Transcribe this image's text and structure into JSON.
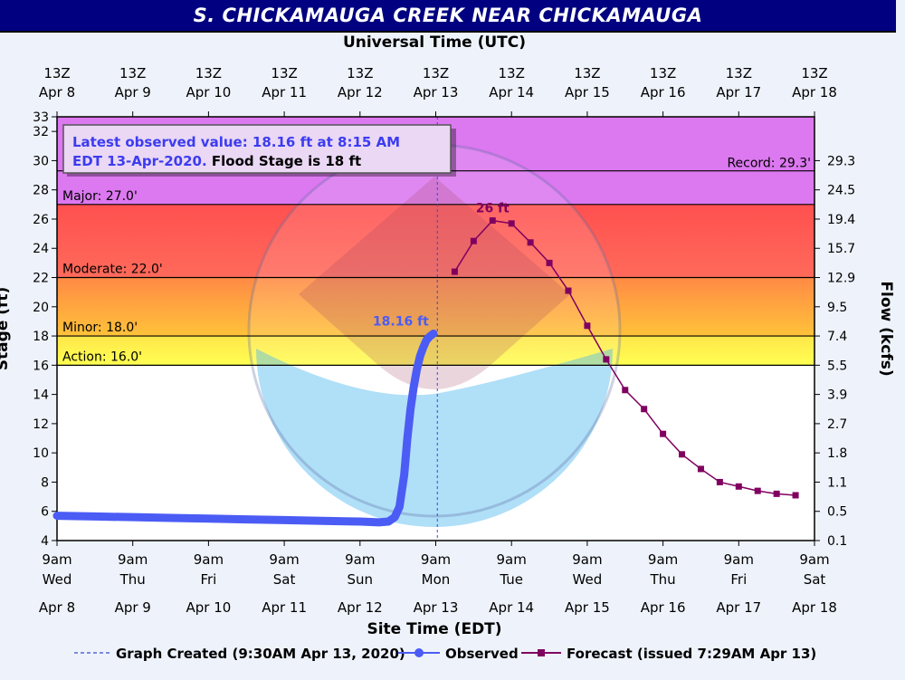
{
  "title": "S. CHICKAMAUGA CREEK NEAR CHICKAMAUGA",
  "top_axis_title": "Universal Time (UTC)",
  "bottom_axis_title": "Site Time (EDT)",
  "left_axis_title": "Stage (ft)",
  "right_axis_title": "Flow (kcfs)",
  "info_box": {
    "line1": "Latest observed value: 18.16 ft at 8:15 AM",
    "line2a": "EDT 13-Apr-2020.",
    "line2b": "Flood Stage is 18 ft"
  },
  "legend": {
    "graph_created": "Graph Created (9:30AM Apr 13, 2020)",
    "observed": "Observed",
    "forecast": "Forecast (issued 7:29AM Apr 13)"
  },
  "colors": {
    "record_band": "#dc78f0",
    "major_band": "#ff5a5a",
    "moderate_band": "#ffb23a",
    "minor_band": "#ffff52",
    "observed": "#4b5cf5",
    "forecast": "#800060",
    "info_text": "#3c3cf0",
    "banner": "#000080"
  },
  "chart_data": {
    "type": "line",
    "x_axis": {
      "start": "2020-04-08 09:00 EDT",
      "end": "2020-04-18 09:00 EDT",
      "bottom_ticks": [
        {
          "time": "9am",
          "day": "Wed",
          "date": "Apr 8"
        },
        {
          "time": "9am",
          "day": "Thu",
          "date": "Apr 9"
        },
        {
          "time": "9am",
          "day": "Fri",
          "date": "Apr 10"
        },
        {
          "time": "9am",
          "day": "Sat",
          "date": "Apr 11"
        },
        {
          "time": "9am",
          "day": "Sun",
          "date": "Apr 12"
        },
        {
          "time": "9am",
          "day": "Mon",
          "date": "Apr 13"
        },
        {
          "time": "9am",
          "day": "Tue",
          "date": "Apr 14"
        },
        {
          "time": "9am",
          "day": "Wed",
          "date": "Apr 15"
        },
        {
          "time": "9am",
          "day": "Thu",
          "date": "Apr 16"
        },
        {
          "time": "9am",
          "day": "Fri",
          "date": "Apr 17"
        },
        {
          "time": "9am",
          "day": "Sat",
          "date": "Apr 18"
        }
      ],
      "top_ticks": [
        {
          "time": "13Z",
          "date": "Apr 8"
        },
        {
          "time": "13Z",
          "date": "Apr 9"
        },
        {
          "time": "13Z",
          "date": "Apr 10"
        },
        {
          "time": "13Z",
          "date": "Apr 11"
        },
        {
          "time": "13Z",
          "date": "Apr 12"
        },
        {
          "time": "13Z",
          "date": "Apr 13"
        },
        {
          "time": "13Z",
          "date": "Apr 14"
        },
        {
          "time": "13Z",
          "date": "Apr 15"
        },
        {
          "time": "13Z",
          "date": "Apr 16"
        },
        {
          "time": "13Z",
          "date": "Apr 17"
        },
        {
          "time": "13Z",
          "date": "Apr 18"
        }
      ]
    },
    "y_axis": {
      "label": "Stage (ft)",
      "ylim": [
        4,
        33
      ],
      "ticks": [
        4,
        6,
        8,
        10,
        12,
        14,
        16,
        18,
        20,
        22,
        24,
        26,
        28,
        30,
        32,
        33
      ]
    },
    "right_axis": {
      "label": "Flow (kcfs)",
      "ticks": [
        {
          "stage": 4,
          "flow": "0.1"
        },
        {
          "stage": 6,
          "flow": "0.5"
        },
        {
          "stage": 8,
          "flow": "1.1"
        },
        {
          "stage": 10,
          "flow": "1.8"
        },
        {
          "stage": 12,
          "flow": "2.7"
        },
        {
          "stage": 14,
          "flow": "3.9"
        },
        {
          "stage": 16,
          "flow": "5.5"
        },
        {
          "stage": 18,
          "flow": "7.4"
        },
        {
          "stage": 20,
          "flow": "9.5"
        },
        {
          "stage": 22,
          "flow": "12.9"
        },
        {
          "stage": 24,
          "flow": "15.7"
        },
        {
          "stage": 26,
          "flow": "19.4"
        },
        {
          "stage": 28,
          "flow": "24.5"
        },
        {
          "stage": 30,
          "flow": "29.3"
        }
      ]
    },
    "thresholds": [
      {
        "name": "Action",
        "label": "Action: 16.0'",
        "stage": 16.0
      },
      {
        "name": "Minor",
        "label": "Minor: 18.0'",
        "stage": 18.0
      },
      {
        "name": "Moderate",
        "label": "Moderate: 22.0'",
        "stage": 22.0
      },
      {
        "name": "Major",
        "label": "Major: 27.0'",
        "stage": 27.0
      },
      {
        "name": "Record",
        "label": "Record: 29.3'",
        "stage": 29.3
      }
    ],
    "graph_created": "2020-04-13 09:30 EDT",
    "series": [
      {
        "name": "Observed",
        "points": [
          [
            "2020-04-08 09:00",
            5.7
          ],
          [
            "2020-04-08 21:00",
            5.65
          ],
          [
            "2020-04-09 09:00",
            5.6
          ],
          [
            "2020-04-09 21:00",
            5.55
          ],
          [
            "2020-04-10 09:00",
            5.5
          ],
          [
            "2020-04-10 21:00",
            5.45
          ],
          [
            "2020-04-11 09:00",
            5.4
          ],
          [
            "2020-04-11 21:00",
            5.35
          ],
          [
            "2020-04-12 09:00",
            5.3
          ],
          [
            "2020-04-12 15:00",
            5.25
          ],
          [
            "2020-04-12 18:00",
            5.3
          ],
          [
            "2020-04-12 20:00",
            5.6
          ],
          [
            "2020-04-12 21:30",
            6.3
          ],
          [
            "2020-04-12 23:00",
            8.5
          ],
          [
            "2020-04-13 00:00",
            11.0
          ],
          [
            "2020-04-13 01:00",
            13.0
          ],
          [
            "2020-04-13 02:00",
            14.5
          ],
          [
            "2020-04-13 03:00",
            15.7
          ],
          [
            "2020-04-13 04:00",
            16.6
          ],
          [
            "2020-04-13 05:00",
            17.2
          ],
          [
            "2020-04-13 06:00",
            17.7
          ],
          [
            "2020-04-13 07:00",
            17.95
          ],
          [
            "2020-04-13 08:15",
            18.16
          ]
        ],
        "peak_label": "18.16 ft"
      },
      {
        "name": "Forecast",
        "points": [
          [
            "2020-04-13 15:00",
            22.4
          ],
          [
            "2020-04-13 21:00",
            24.5
          ],
          [
            "2020-04-14 03:00",
            25.9
          ],
          [
            "2020-04-14 09:00",
            25.7
          ],
          [
            "2020-04-14 15:00",
            24.4
          ],
          [
            "2020-04-14 21:00",
            23.0
          ],
          [
            "2020-04-15 03:00",
            21.1
          ],
          [
            "2020-04-15 09:00",
            18.7
          ],
          [
            "2020-04-15 15:00",
            16.4
          ],
          [
            "2020-04-15 21:00",
            14.3
          ],
          [
            "2020-04-16 03:00",
            13.0
          ],
          [
            "2020-04-16 09:00",
            11.3
          ],
          [
            "2020-04-16 15:00",
            9.9
          ],
          [
            "2020-04-16 21:00",
            8.9
          ],
          [
            "2020-04-17 03:00",
            8.0
          ],
          [
            "2020-04-17 09:00",
            7.7
          ],
          [
            "2020-04-17 15:00",
            7.4
          ],
          [
            "2020-04-17 21:00",
            7.2
          ],
          [
            "2020-04-18 03:00",
            7.1
          ]
        ],
        "peak_label": "26 ft"
      }
    ]
  }
}
